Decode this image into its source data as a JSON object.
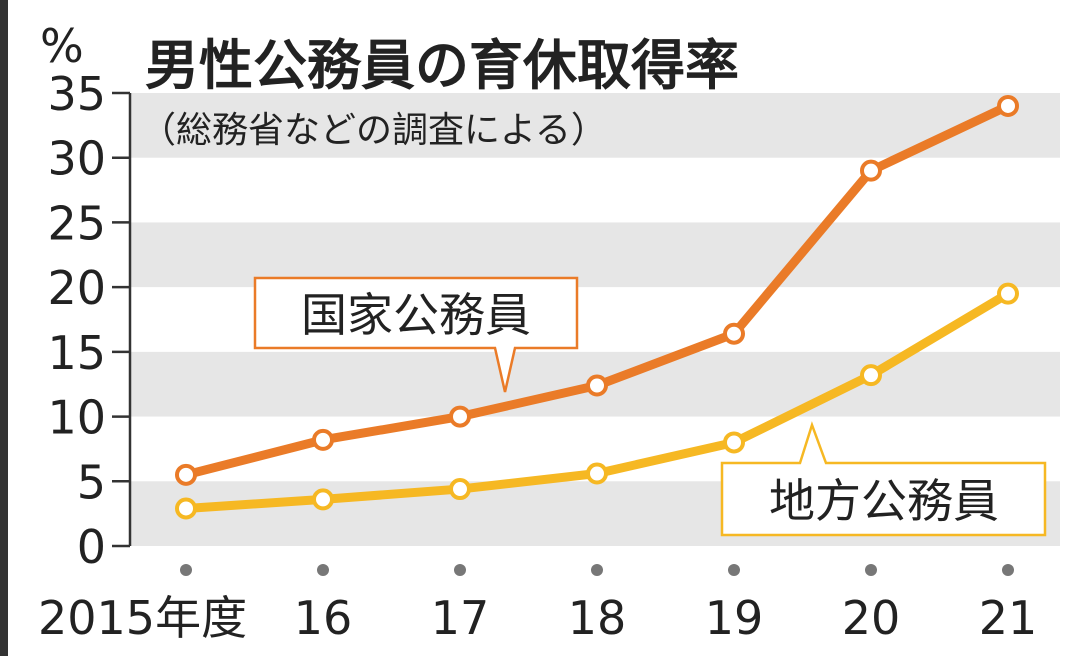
{
  "chart_data": {
    "type": "line",
    "title": "男性公務員の育休取得率",
    "subtitle": "（総務省などの調査による）",
    "ylabel": "%",
    "xlabel": "",
    "ylim": [
      0,
      35
    ],
    "yticks": [
      0,
      5,
      10,
      15,
      20,
      25,
      30,
      35
    ],
    "categories": [
      "2015年度",
      "16",
      "17",
      "18",
      "19",
      "20",
      "21"
    ],
    "grid": "alternating horizontal bands",
    "series": [
      {
        "name": "国家公務員",
        "color": "#ea7b28",
        "values": [
          5.5,
          8.2,
          10.0,
          12.4,
          16.4,
          29.0,
          34.0
        ]
      },
      {
        "name": "地方公務員",
        "color": "#f6b823",
        "values": [
          2.9,
          3.6,
          4.4,
          5.6,
          8.0,
          13.2,
          19.5
        ]
      }
    ]
  }
}
